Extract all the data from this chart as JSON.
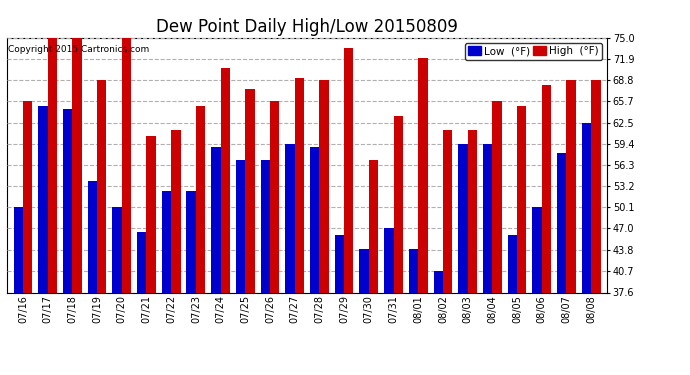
{
  "title": "Dew Point Daily High/Low 20150809",
  "copyright": "Copyright 2015 Cartronics.com",
  "dates": [
    "07/16",
    "07/17",
    "07/18",
    "07/19",
    "07/20",
    "07/21",
    "07/22",
    "07/23",
    "07/24",
    "07/25",
    "07/26",
    "07/27",
    "07/28",
    "07/29",
    "07/30",
    "07/31",
    "08/01",
    "08/02",
    "08/03",
    "08/04",
    "08/05",
    "08/06",
    "08/07",
    "08/08"
  ],
  "low_values": [
    50.1,
    65.0,
    64.5,
    54.0,
    50.1,
    46.5,
    52.5,
    52.5,
    59.0,
    57.0,
    57.0,
    59.4,
    59.0,
    46.0,
    44.0,
    47.0,
    44.0,
    40.7,
    59.4,
    59.4,
    46.0,
    50.1,
    58.0,
    62.5
  ],
  "high_values": [
    65.7,
    75.0,
    75.0,
    68.8,
    75.0,
    60.5,
    61.5,
    65.0,
    70.5,
    67.5,
    65.7,
    69.0,
    68.8,
    73.5,
    57.0,
    63.5,
    72.0,
    61.5,
    61.5,
    65.7,
    65.0,
    68.0,
    68.8,
    68.8
  ],
  "low_color": "#0000cc",
  "high_color": "#cc0000",
  "bg_color": "#ffffff",
  "plot_bg_color": "#ffffff",
  "ylim_min": 37.6,
  "ylim_max": 75.0,
  "yticks": [
    37.6,
    40.7,
    43.8,
    47.0,
    50.1,
    53.2,
    56.3,
    59.4,
    62.5,
    65.7,
    68.8,
    71.9,
    75.0
  ],
  "grid_color": "#b0b0b0",
  "title_fontsize": 12,
  "tick_fontsize": 7,
  "legend_fontsize": 7.5,
  "copyright_fontsize": 6.5,
  "bar_width": 0.38
}
